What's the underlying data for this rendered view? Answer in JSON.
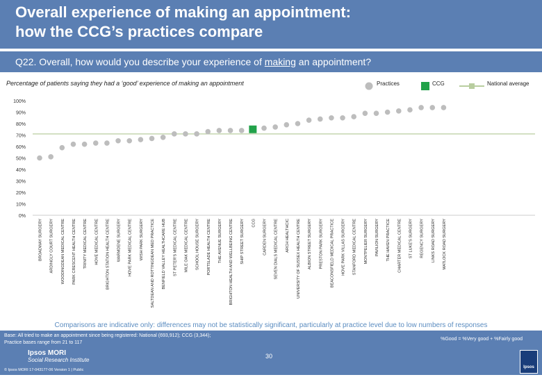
{
  "header": {
    "title_line1": "Overall experience of making an appointment:",
    "title_line2": "how the CCG’s practices compare"
  },
  "question": {
    "text_before": "Q22. Overall, how would you describe your experience of ",
    "text_underlined": "making",
    "text_after": " an appointment?"
  },
  "subtitle": "Percentage of patients saying they had a ‘good’ experience of making an appointment",
  "legend": {
    "practices": "Practices",
    "ccg": "CCG",
    "national": "National average"
  },
  "colors": {
    "practice": "#bdbdbd",
    "ccg": "#22a24a",
    "national": "#b8cd9f",
    "header": "#5b7fb3",
    "note": "#5b8cc0"
  },
  "note": "Comparisons are indicative only: differences may not be statistically significant, particularly at practice level due to low numbers of responses",
  "footer": {
    "base_line1": "Base: All tried to make an appointment since being registered: National (693,912); CCG (3,344);",
    "base_line2": "Practice bases range from 21 to 117",
    "definition": "%Good = %Very good + %Fairly good",
    "logo_line1": "Ipsos MORI",
    "logo_line2": "Social Research Institute",
    "copyright": "© Ipsos MORI      17-043177-06 Version 1 | Public",
    "page_number": "30",
    "brand_logo": "Ipsos"
  },
  "chart_data": {
    "type": "scatter",
    "title": "",
    "xlabel": "",
    "ylabel": "",
    "ylim": [
      0,
      100
    ],
    "y_ticks": [
      "0%",
      "10%",
      "20%",
      "30%",
      "40%",
      "50%",
      "60%",
      "70%",
      "80%",
      "90%",
      "100%"
    ],
    "grid": false,
    "legend_position": "top-right",
    "national_average": 71,
    "categories": [
      "BROADWAY SURGERY",
      "ARDINGLY COURT SURGERY",
      "WOODINGDEAN MEDICAL CENTRE",
      "PARK CRESCENT HEALTH CENTRE",
      "TRINITY MEDICAL CENTRE",
      "HOVE MEDICAL CENTRE",
      "BRIGHTON STATION HEALTH CENTRE",
      "WARMDENE SURGERY",
      "HOVE PARK MEDICAL CENTRE",
      "WISH PARK SURGERY",
      "SALTDEAN AND ROTTINGDEAN MED PRACTICE",
      "BENFIELD VALLEY HEALTHCARE HUB",
      "ST PETER'S MEDICAL CENTRE",
      "MILE OAK MEDICAL CENTRE",
      "SCHOOL HOUSE SURGERY",
      "PORTSLADE HEALTH CENTRE",
      "THE AVENUE SURGERY",
      "BRIGHTON HEALTH AND WELLBEING CENTRE",
      "SHIP STREET SURGERY",
      "CCG",
      "CARDEN SURGERY",
      "SEVEN DIALS MEDICAL CENTRE",
      "ARCH HEALTHCIC",
      "UNIVERSITY OF SUSSEX HEALTH CENTRE",
      "ALBION STREET SURGERY",
      "PRESTON PARK SURGERY",
      "BEACONSFIELD MEDICAL PRACTICE",
      "HOVE PARK VILLAS SURGERY",
      "STANFORD MEDICAL CENTRE",
      "MONTPELIER SURGERY",
      "PAVILION SURGERY",
      "THE HAVEN PRACTICE",
      "CHARTER MEDICAL CENTRE",
      "ST LUKE'S SURGERY",
      "REGENCY SURGERY",
      "LINKS ROAD SURGERY",
      "MATLOCK ROAD SURGERY"
    ],
    "values": [
      50,
      51,
      59,
      62,
      62,
      63,
      63,
      65,
      65,
      66,
      67,
      68,
      71,
      71,
      71,
      73,
      74,
      74,
      74,
      75,
      76,
      77,
      79,
      80,
      83,
      84,
      85,
      85,
      86,
      89,
      89,
      90,
      91,
      92,
      94,
      94,
      94
    ],
    "ccg_index": 19
  }
}
